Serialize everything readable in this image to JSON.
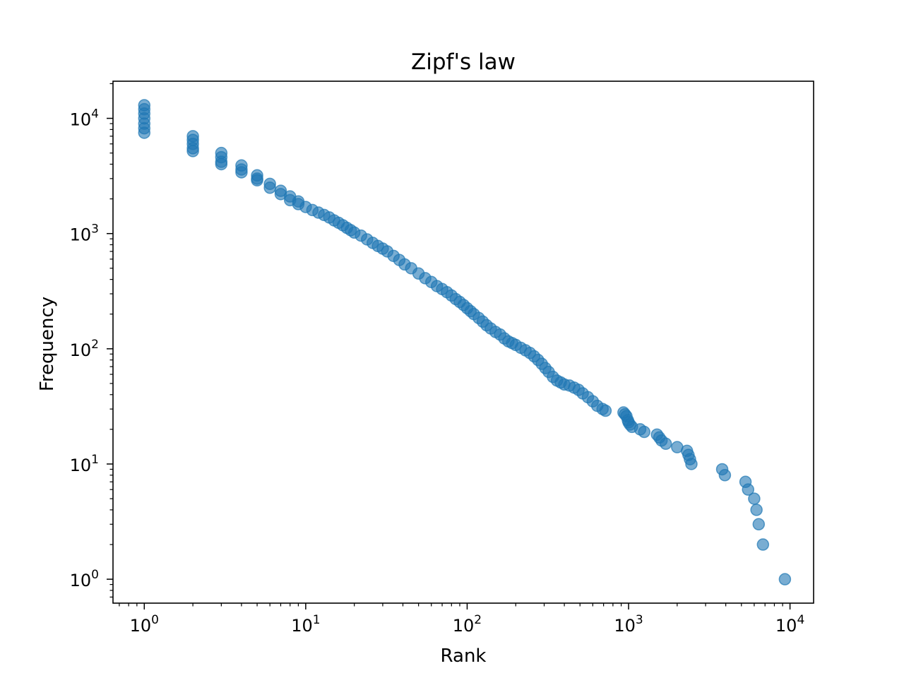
{
  "chart_data": {
    "type": "scatter",
    "title": "Zipf's law",
    "xlabel": "Rank",
    "ylabel": "Frequency",
    "xscale": "log",
    "yscale": "log",
    "xlim": [
      0.64,
      14000
    ],
    "ylim": [
      0.62,
      21000
    ],
    "grid": false,
    "legend": "none",
    "x_ticks": [
      {
        "base": "10",
        "exp": "0",
        "value": 1
      },
      {
        "base": "10",
        "exp": "1",
        "value": 10
      },
      {
        "base": "10",
        "exp": "2",
        "value": 100
      },
      {
        "base": "10",
        "exp": "3",
        "value": 1000
      },
      {
        "base": "10",
        "exp": "4",
        "value": 10000
      }
    ],
    "y_ticks": [
      {
        "base": "10",
        "exp": "0",
        "value": 1
      },
      {
        "base": "10",
        "exp": "1",
        "value": 10
      },
      {
        "base": "10",
        "exp": "2",
        "value": 100
      },
      {
        "base": "10",
        "exp": "3",
        "value": 1000
      },
      {
        "base": "10",
        "exp": "4",
        "value": 10000
      }
    ],
    "series": [
      {
        "color": "#1f77b4",
        "alpha": 0.6,
        "points": [
          [
            1,
            13000
          ],
          [
            1,
            12000
          ],
          [
            1,
            11000
          ],
          [
            1,
            10000
          ],
          [
            1,
            9000
          ],
          [
            1,
            8200
          ],
          [
            1,
            7500
          ],
          [
            2,
            7000
          ],
          [
            2,
            6500
          ],
          [
            2,
            6000
          ],
          [
            2,
            5500
          ],
          [
            2,
            5200
          ],
          [
            3,
            5000
          ],
          [
            3,
            4600
          ],
          [
            3,
            4200
          ],
          [
            3,
            4000
          ],
          [
            4,
            3900
          ],
          [
            4,
            3600
          ],
          [
            4,
            3400
          ],
          [
            5,
            3200
          ],
          [
            5,
            3000
          ],
          [
            5,
            2900
          ],
          [
            6,
            2700
          ],
          [
            6,
            2500
          ],
          [
            7,
            2350
          ],
          [
            7,
            2200
          ],
          [
            8,
            2100
          ],
          [
            8,
            1950
          ],
          [
            9,
            1900
          ],
          [
            9,
            1800
          ],
          [
            10,
            1700
          ],
          [
            11,
            1600
          ],
          [
            12,
            1520
          ],
          [
            13,
            1450
          ],
          [
            14,
            1380
          ],
          [
            15,
            1300
          ],
          [
            16,
            1240
          ],
          [
            17,
            1180
          ],
          [
            18,
            1120
          ],
          [
            19,
            1070
          ],
          [
            20,
            1020
          ],
          [
            22,
            960
          ],
          [
            24,
            890
          ],
          [
            26,
            830
          ],
          [
            28,
            780
          ],
          [
            30,
            740
          ],
          [
            32,
            700
          ],
          [
            35,
            640
          ],
          [
            38,
            590
          ],
          [
            41,
            540
          ],
          [
            45,
            500
          ],
          [
            50,
            450
          ],
          [
            55,
            410
          ],
          [
            60,
            380
          ],
          [
            65,
            350
          ],
          [
            70,
            330
          ],
          [
            75,
            310
          ],
          [
            80,
            290
          ],
          [
            85,
            270
          ],
          [
            90,
            255
          ],
          [
            95,
            240
          ],
          [
            100,
            225
          ],
          [
            105,
            212
          ],
          [
            110,
            200
          ],
          [
            118,
            185
          ],
          [
            125,
            172
          ],
          [
            132,
            160
          ],
          [
            140,
            150
          ],
          [
            150,
            140
          ],
          [
            160,
            133
          ],
          [
            170,
            123
          ],
          [
            180,
            116
          ],
          [
            190,
            112
          ],
          [
            200,
            108
          ],
          [
            215,
            102
          ],
          [
            230,
            97
          ],
          [
            245,
            92
          ],
          [
            260,
            86
          ],
          [
            275,
            80
          ],
          [
            290,
            74
          ],
          [
            305,
            68
          ],
          [
            320,
            63
          ],
          [
            340,
            57
          ],
          [
            360,
            53
          ],
          [
            380,
            51
          ],
          [
            400,
            49
          ],
          [
            430,
            48
          ],
          [
            460,
            46
          ],
          [
            490,
            44
          ],
          [
            520,
            41
          ],
          [
            560,
            38
          ],
          [
            600,
            35
          ],
          [
            640,
            32
          ],
          [
            690,
            30
          ],
          [
            720,
            29
          ],
          [
            930,
            28
          ],
          [
            950,
            27
          ],
          [
            970,
            26
          ],
          [
            990,
            24
          ],
          [
            1000,
            23
          ],
          [
            1020,
            22
          ],
          [
            1050,
            21
          ],
          [
            1180,
            20
          ],
          [
            1250,
            19
          ],
          [
            1500,
            18
          ],
          [
            1550,
            17
          ],
          [
            1600,
            16
          ],
          [
            1700,
            15
          ],
          [
            2000,
            14
          ],
          [
            2300,
            13
          ],
          [
            2350,
            12
          ],
          [
            2400,
            11
          ],
          [
            2450,
            10
          ],
          [
            3800,
            9
          ],
          [
            3950,
            8
          ],
          [
            5300,
            7
          ],
          [
            5500,
            6
          ],
          [
            6000,
            5
          ],
          [
            6200,
            4
          ],
          [
            6400,
            3
          ],
          [
            6800,
            2
          ],
          [
            9300,
            1
          ]
        ]
      }
    ]
  }
}
